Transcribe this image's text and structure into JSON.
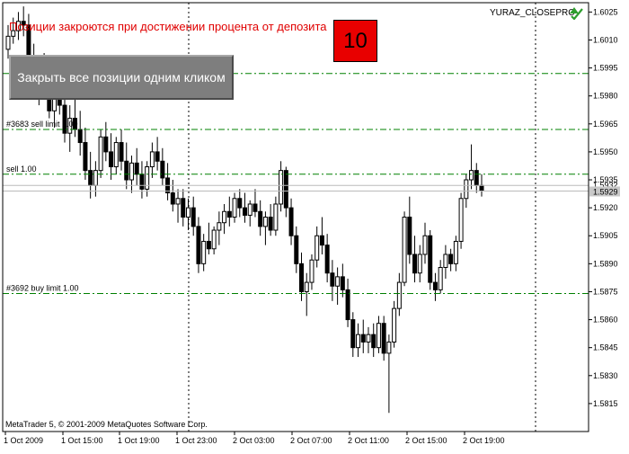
{
  "symbol": "YURAZ_CLOSEPRC",
  "overlay": {
    "title": "Позиции закроются при достижении процента от депозита",
    "percent_value": "10",
    "close_button_label": "Закрыть все позиции одним кликом"
  },
  "copyright": "MetaTrader 5, © 2001-2009 MetaQuotes Software Corp.",
  "colors": {
    "background": "#ffffff",
    "candle": "#000000",
    "order_line": "#008000",
    "title_red": "#e00000",
    "percent_box": "#e80000",
    "button_gray": "#7e7e7e"
  },
  "chart_data": {
    "type": "candlestick",
    "symbol": "YURAZ_CLOSEPRC",
    "ylim": [
      1.58,
      1.603
    ],
    "y_ticks": [
      "1.6025",
      "1.6010",
      "1.5995",
      "1.5980",
      "1.5965",
      "1.5950",
      "1.5935",
      "1.5920",
      "1.5905",
      "1.5890",
      "1.5875",
      "1.5860",
      "1.5845",
      "1.5830",
      "1.5815"
    ],
    "x_ticks": [
      "1 Oct 2009",
      "1 Oct 15:00",
      "1 Oct 19:00",
      "1 Oct 23:00",
      "2 Oct 03:00",
      "2 Oct 07:00",
      "2 Oct 11:00",
      "2 Oct 15:00",
      "2 Oct 19:00"
    ],
    "bid_label": "1.5929",
    "ask_label": "1.5932",
    "order_lines": [
      {
        "label": "",
        "price": 1.5992
      },
      {
        "label": "#3683 sell limit 1.00",
        "price": 1.5962
      },
      {
        "label": "sell 1.00",
        "price": 1.5938
      },
      {
        "label": "#3692 buy limit 1.00",
        "price": 1.5874
      }
    ],
    "candles": [
      [
        1.6005,
        1.6018,
        1.6,
        1.6012
      ],
      [
        1.6012,
        1.6022,
        1.6008,
        1.6015
      ],
      [
        1.6015,
        1.6025,
        1.601,
        1.602
      ],
      [
        1.602,
        1.6028,
        1.6012,
        1.6018
      ],
      [
        1.6018,
        1.6024,
        1.5996,
        1.6
      ],
      [
        1.6,
        1.6008,
        1.598,
        1.5985
      ],
      [
        1.5985,
        1.5998,
        1.5975,
        1.5992
      ],
      [
        1.5992,
        1.6003,
        1.5985,
        1.599
      ],
      [
        1.599,
        1.5996,
        1.5968,
        1.5972
      ],
      [
        1.5972,
        1.5985,
        1.5963,
        1.598
      ],
      [
        1.598,
        1.599,
        1.597,
        1.5975
      ],
      [
        1.5975,
        1.5982,
        1.5955,
        1.596
      ],
      [
        1.596,
        1.5975,
        1.595,
        1.5968
      ],
      [
        1.5968,
        1.598,
        1.5958,
        1.5962
      ],
      [
        1.5962,
        1.5972,
        1.5948,
        1.5955
      ],
      [
        1.5955,
        1.5963,
        1.5935,
        1.594
      ],
      [
        1.594,
        1.595,
        1.5925,
        1.5932
      ],
      [
        1.5932,
        1.5945,
        1.5926,
        1.594
      ],
      [
        1.594,
        1.5962,
        1.5936,
        1.5958
      ],
      [
        1.5958,
        1.5966,
        1.5945,
        1.595
      ],
      [
        1.595,
        1.596,
        1.5935,
        1.5942
      ],
      [
        1.5942,
        1.5958,
        1.5938,
        1.5955
      ],
      [
        1.5955,
        1.5962,
        1.594,
        1.5945
      ],
      [
        1.5945,
        1.5955,
        1.593,
        1.5935
      ],
      [
        1.5935,
        1.5948,
        1.5928,
        1.5944
      ],
      [
        1.5944,
        1.5952,
        1.5932,
        1.5938
      ],
      [
        1.5938,
        1.5945,
        1.5925,
        1.593
      ],
      [
        1.593,
        1.5945,
        1.5926,
        1.5942
      ],
      [
        1.5942,
        1.5955,
        1.5936,
        1.595
      ],
      [
        1.595,
        1.5958,
        1.594,
        1.5945
      ],
      [
        1.5945,
        1.5952,
        1.5932,
        1.5936
      ],
      [
        1.5936,
        1.5944,
        1.5924,
        1.5928
      ],
      [
        1.5928,
        1.5935,
        1.5918,
        1.5922
      ],
      [
        1.5922,
        1.593,
        1.5912,
        1.5925
      ],
      [
        1.5925,
        1.593,
        1.591,
        1.5915
      ],
      [
        1.5915,
        1.5925,
        1.5908,
        1.592
      ],
      [
        1.592,
        1.5926,
        1.5905,
        1.591
      ],
      [
        1.591,
        1.5915,
        1.5885,
        1.589
      ],
      [
        1.589,
        1.5906,
        1.5886,
        1.5902
      ],
      [
        1.5902,
        1.5912,
        1.5895,
        1.5898
      ],
      [
        1.5898,
        1.591,
        1.5895,
        1.5908
      ],
      [
        1.5908,
        1.5918,
        1.59,
        1.5912
      ],
      [
        1.5912,
        1.5922,
        1.5906,
        1.5918
      ],
      [
        1.5918,
        1.5926,
        1.591,
        1.5915
      ],
      [
        1.5915,
        1.5928,
        1.5912,
        1.5925
      ],
      [
        1.5925,
        1.593,
        1.5915,
        1.592
      ],
      [
        1.592,
        1.5928,
        1.5912,
        1.5916
      ],
      [
        1.5916,
        1.5924,
        1.591,
        1.5922
      ],
      [
        1.5922,
        1.593,
        1.5915,
        1.5918
      ],
      [
        1.5918,
        1.5924,
        1.5905,
        1.591
      ],
      [
        1.591,
        1.5918,
        1.59,
        1.5915
      ],
      [
        1.5915,
        1.5922,
        1.5905,
        1.5908
      ],
      [
        1.5908,
        1.5926,
        1.5905,
        1.5922
      ],
      [
        1.5922,
        1.5945,
        1.5918,
        1.594
      ],
      [
        1.594,
        1.5942,
        1.5915,
        1.592
      ],
      [
        1.592,
        1.5925,
        1.59,
        1.5905
      ],
      [
        1.5905,
        1.591,
        1.5885,
        1.589
      ],
      [
        1.589,
        1.5896,
        1.587,
        1.5875
      ],
      [
        1.5875,
        1.5885,
        1.5862,
        1.588
      ],
      [
        1.588,
        1.5895,
        1.5876,
        1.5892
      ],
      [
        1.5892,
        1.591,
        1.5888,
        1.5905
      ],
      [
        1.5905,
        1.5915,
        1.5895,
        1.59
      ],
      [
        1.59,
        1.5906,
        1.588,
        1.5885
      ],
      [
        1.5885,
        1.5892,
        1.587,
        1.5878
      ],
      [
        1.5878,
        1.5888,
        1.5868,
        1.5883
      ],
      [
        1.5883,
        1.589,
        1.5872,
        1.5876
      ],
      [
        1.5876,
        1.5882,
        1.5856,
        1.586
      ],
      [
        1.586,
        1.5864,
        1.584,
        1.5845
      ],
      [
        1.5845,
        1.5858,
        1.584,
        1.5852
      ],
      [
        1.5852,
        1.586,
        1.5842,
        1.5848
      ],
      [
        1.5848,
        1.5856,
        1.5842,
        1.5852
      ],
      [
        1.5852,
        1.5858,
        1.584,
        1.5845
      ],
      [
        1.5845,
        1.5862,
        1.5842,
        1.5858
      ],
      [
        1.5858,
        1.5862,
        1.5838,
        1.5842
      ],
      [
        1.5842,
        1.5852,
        1.581,
        1.5848
      ],
      [
        1.5848,
        1.587,
        1.5845,
        1.5866
      ],
      [
        1.5866,
        1.5885,
        1.5862,
        1.588
      ],
      [
        1.588,
        1.5918,
        1.5878,
        1.5915
      ],
      [
        1.5915,
        1.5926,
        1.589,
        1.5895
      ],
      [
        1.5895,
        1.5905,
        1.588,
        1.5885
      ],
      [
        1.5885,
        1.59,
        1.588,
        1.5895
      ],
      [
        1.5895,
        1.5912,
        1.589,
        1.5905
      ],
      [
        1.5905,
        1.5908,
        1.5876,
        1.588
      ],
      [
        1.588,
        1.5885,
        1.587,
        1.5876
      ],
      [
        1.5876,
        1.5892,
        1.5874,
        1.5888
      ],
      [
        1.5888,
        1.59,
        1.5882,
        1.5895
      ],
      [
        1.5895,
        1.5898,
        1.5886,
        1.589
      ],
      [
        1.589,
        1.5905,
        1.5886,
        1.5902
      ],
      [
        1.5902,
        1.5928,
        1.5898,
        1.5925
      ],
      [
        1.5925,
        1.5938,
        1.592,
        1.5935
      ],
      [
        1.5935,
        1.5954,
        1.593,
        1.594
      ],
      [
        1.594,
        1.5944,
        1.5928,
        1.5932
      ],
      [
        1.5932,
        1.5938,
        1.5926,
        1.5929
      ]
    ]
  }
}
